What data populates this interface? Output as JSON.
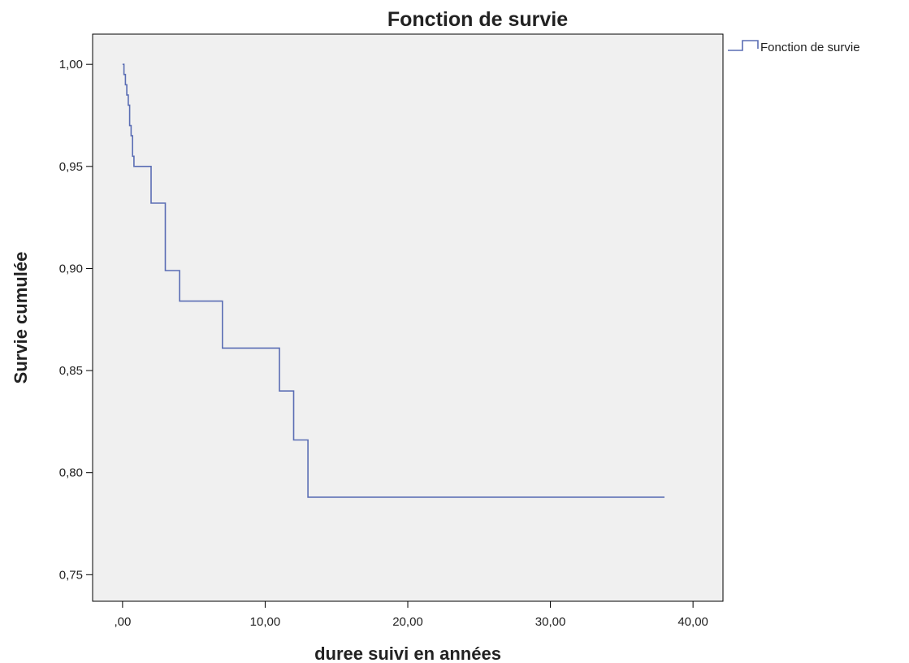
{
  "colors": {
    "plot_background": "#F0F0F0",
    "series_line": "#5A6DB4",
    "frame": "#000000"
  },
  "chart_data": {
    "type": "line",
    "step": true,
    "title": "Fonction de survie",
    "xlabel": "duree suivi en années",
    "ylabel": "Survie cumulée",
    "xlim": [
      -2.1,
      42.1
    ],
    "ylim": [
      0.737,
      1.0148
    ],
    "xticks": [
      0,
      10,
      20,
      30,
      40
    ],
    "xtick_labels": [
      ",00",
      "10,00",
      "20,00",
      "30,00",
      "40,00"
    ],
    "yticks": [
      0.75,
      0.8,
      0.85,
      0.9,
      0.95,
      1.0
    ],
    "ytick_labels": [
      "0,75",
      "0,80",
      "0,85",
      "0,90",
      "0,95",
      "1,00"
    ],
    "legend": "top-right outside",
    "grid": false,
    "series": [
      {
        "name": "Fonction de survie",
        "x": [
          0,
          0.1,
          0.2,
          0.3,
          0.4,
          0.5,
          0.6,
          0.7,
          0.8,
          0.9,
          2,
          3,
          4,
          7,
          11,
          12,
          13,
          38
        ],
        "y": [
          1.0,
          0.995,
          0.99,
          0.985,
          0.98,
          0.97,
          0.965,
          0.955,
          0.95,
          0.95,
          0.932,
          0.899,
          0.884,
          0.861,
          0.84,
          0.816,
          0.788,
          0.788
        ]
      }
    ]
  }
}
